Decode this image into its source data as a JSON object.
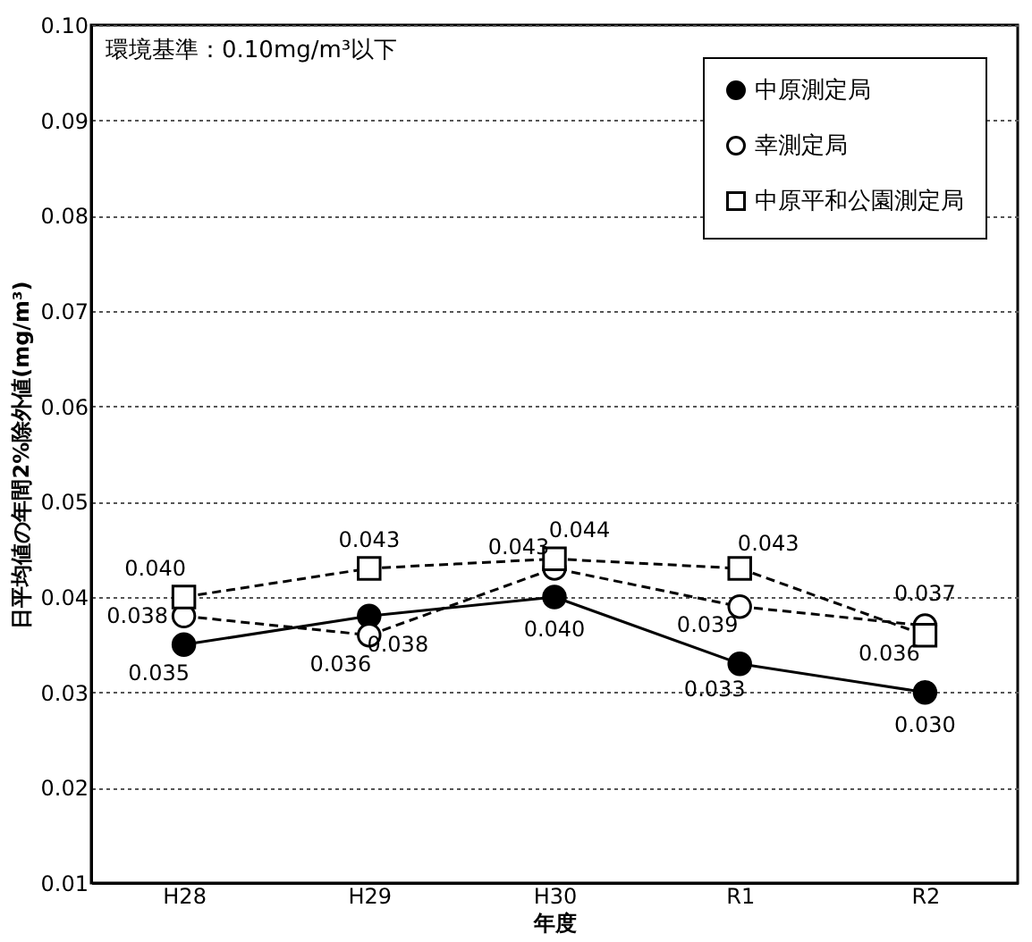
{
  "chart_data": {
    "type": "line",
    "xlabel": "年度",
    "ylabel": "日平均値の年間2%除外値(mg/m³)",
    "annotations": [
      "環境基準：0.10mg/m³以下"
    ],
    "categories": [
      "H28",
      "H29",
      "H30",
      "R1",
      "R2"
    ],
    "series": [
      {
        "name": "中原測定局",
        "color": "#000000",
        "values": [
          0.035,
          0.038,
          0.04,
          0.033,
          0.03
        ],
        "value_labels": [
          "0.035",
          "0.038",
          "0.040",
          "0.033",
          "0.030"
        ],
        "marker": "circle",
        "line_style": "solid"
      },
      {
        "name": "幸測定局",
        "color": "#000000",
        "values": [
          0.038,
          0.036,
          0.043,
          0.039,
          0.037
        ],
        "value_labels": [
          "0.038",
          "0.036",
          "0.043",
          "0.039",
          "0.037"
        ],
        "marker": "circle",
        "line_style": "dashed"
      },
      {
        "name": "中原平和公園測定局",
        "color": "#000000",
        "values": [
          0.04,
          0.043,
          0.044,
          0.043,
          0.036
        ],
        "value_labels": [
          "0.040",
          "0.043",
          "0.044",
          "0.043",
          "0.036"
        ],
        "marker": "square",
        "line_style": "dashed"
      }
    ],
    "ylim": [
      0.01,
      0.1
    ],
    "yticks": [
      0.01,
      0.02,
      0.03,
      0.04,
      0.05,
      0.06,
      0.07,
      0.08,
      0.09,
      {
        "value": 0.1,
        "label": "0.10"
      }
    ],
    "grid": "y",
    "legend": "top right"
  }
}
